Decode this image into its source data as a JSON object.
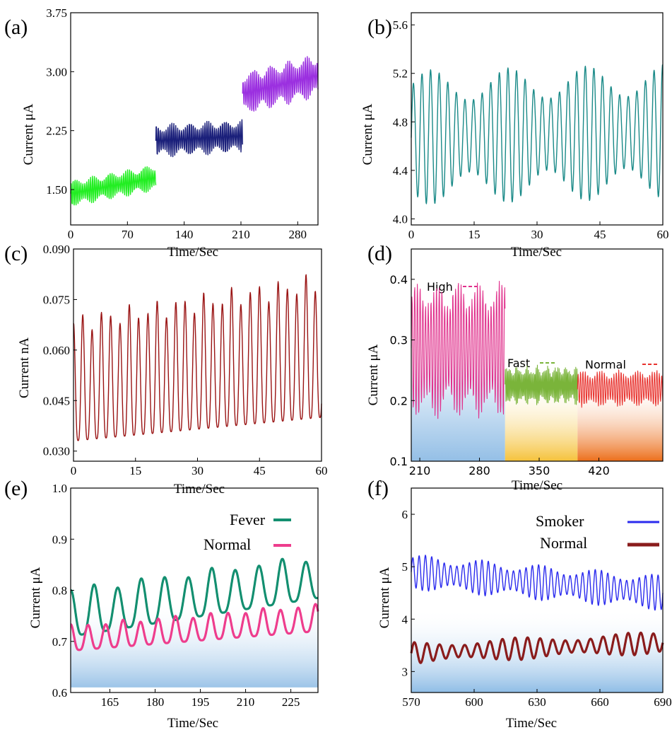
{
  "chart_data": [
    {
      "panel": "(a)",
      "type": "line",
      "xlabel": "Time/Sec",
      "ylabel": "Current μA",
      "xlim": [
        0,
        305
      ],
      "ylim": [
        1.05,
        3.75
      ],
      "xticks": [
        "0",
        "70",
        "140",
        "210",
        "280"
      ],
      "yticks": [
        "1.50",
        "2.25",
        "3.00",
        "3.75"
      ],
      "series": [
        {
          "x_range": [
            0,
            105
          ],
          "baseline": [
            1.45,
            1.65
          ],
          "amplitude": 0.16,
          "period": 2.4,
          "color": "#22ee22"
        },
        {
          "x_range": [
            105,
            212
          ],
          "baseline": [
            2.12,
            2.18
          ],
          "amplitude": 0.2,
          "period": 2.4,
          "color": "#1a1f7a"
        },
        {
          "x_range": [
            212,
            305
          ],
          "baseline": [
            2.72,
            2.95
          ],
          "amplitude": 0.26,
          "period": 2.4,
          "color": "#9b30e0"
        }
      ]
    },
    {
      "panel": "(b)",
      "type": "line",
      "xlabel": "Time/Sec",
      "ylabel": "Current μA",
      "xlim": [
        0,
        60
      ],
      "ylim": [
        3.95,
        5.7
      ],
      "xticks": [
        "0",
        "15",
        "30",
        "45",
        "60"
      ],
      "yticks": [
        "4.0",
        "4.4",
        "4.8",
        "5.2",
        "5.6"
      ],
      "series": [
        {
          "baseline": [
            4.67,
            4.72
          ],
          "amplitude": 0.52,
          "period": 2.05,
          "color": "#1a8a88"
        }
      ]
    },
    {
      "panel": "(c)",
      "type": "line",
      "xlabel": "Time/Sec",
      "ylabel": "Current nA",
      "xlim": [
        0,
        60
      ],
      "ylim": [
        0.027,
        0.09
      ],
      "xticks": [
        "0",
        "15",
        "30",
        "45",
        "60"
      ],
      "yticks": [
        "0.030",
        "0.045",
        "0.060",
        "0.075",
        "0.090"
      ],
      "series": [
        {
          "minima": [
            0.033,
            0.04
          ],
          "maxima": [
            0.068,
            0.08
          ],
          "period": 2.25,
          "color": "#9a1414"
        }
      ]
    },
    {
      "panel": "(d)",
      "type": "area",
      "xlabel": "Time/Sec",
      "ylabel": "Current μA",
      "xlim": [
        200,
        495
      ],
      "ylim": [
        0.1,
        0.45
      ],
      "xticks": [
        "210",
        "280",
        "350",
        "420"
      ],
      "yticks": [
        "0.1",
        "0.2",
        "0.3",
        "0.4"
      ],
      "series": [
        {
          "name": "High",
          "x_range": [
            200,
            310
          ],
          "mean": 0.285,
          "amplitude": 0.105,
          "period": 3.2,
          "color": "#e0308c",
          "fill": "#9cc3e8"
        },
        {
          "name": "Fast",
          "x_range": [
            310,
            395
          ],
          "mean": 0.225,
          "amplitude": 0.03,
          "period": 1.5,
          "color": "#7ab43a",
          "fill": "#f5c842"
        },
        {
          "name": "Normal",
          "x_range": [
            395,
            495
          ],
          "mean": 0.22,
          "amplitude": 0.028,
          "period": 2.8,
          "color": "#e8322e",
          "fill": "#ee7a22"
        }
      ]
    },
    {
      "panel": "(e)",
      "type": "line",
      "xlabel": "Time/Sec",
      "ylabel": "Current μA",
      "xlim": [
        152,
        234
      ],
      "ylim": [
        0.6,
        1.0
      ],
      "xticks": [
        "165",
        "180",
        "195",
        "210",
        "225"
      ],
      "yticks": [
        "0.6",
        "0.7",
        "0.8",
        "0.9",
        "1.0"
      ],
      "legend_position": "top-right",
      "series": [
        {
          "name": "Fever",
          "minima": [
            0.71,
            0.785
          ],
          "maxima": [
            0.8,
            0.865
          ],
          "period": 7.8,
          "color": "#138f70"
        },
        {
          "name": "Normal",
          "minima": [
            0.682,
            0.72
          ],
          "maxima": [
            0.73,
            0.77
          ],
          "period": 5.8,
          "color": "#ee3d8d"
        }
      ]
    },
    {
      "panel": "(f)",
      "type": "line",
      "xlabel": "Time/Sec",
      "ylabel": "Current μA",
      "xlim": [
        570,
        690
      ],
      "ylim": [
        2.6,
        6.5
      ],
      "xticks": [
        "570",
        "600",
        "630",
        "660",
        "690"
      ],
      "yticks": [
        "3",
        "4",
        "5",
        "6"
      ],
      "legend_position": "top-right",
      "series": [
        {
          "name": "Smoker",
          "baseline": [
            4.9,
            4.5
          ],
          "amplitude": 0.32,
          "period": 3.0,
          "color": "#2b2bee"
        },
        {
          "name": "Normal",
          "baseline": [
            3.35,
            3.55
          ],
          "amplitude": 0.2,
          "period": 6.0,
          "color": "#8a1c1c"
        }
      ]
    }
  ],
  "panels": {
    "a": {
      "label": "(a)",
      "xlabel": "Time/Sec",
      "ylabel": "Current μA"
    },
    "b": {
      "label": "(b)",
      "xlabel": "Time/Sec",
      "ylabel": "Current μA"
    },
    "c": {
      "label": "(c)",
      "xlabel": "Time/Sec",
      "ylabel": "Current nA"
    },
    "d": {
      "label": "(d)",
      "xlabel": "Time/Sec",
      "ylabel": "Current μA",
      "legend": [
        "High",
        "Fast",
        "Normal"
      ]
    },
    "e": {
      "label": "(e)",
      "xlabel": "Time/Sec",
      "ylabel": "Current μA",
      "legend": [
        "Fever",
        "Normal"
      ]
    },
    "f": {
      "label": "(f)",
      "xlabel": "Time/Sec",
      "ylabel": "Current μA",
      "legend": [
        "Smoker",
        "Normal"
      ]
    }
  }
}
